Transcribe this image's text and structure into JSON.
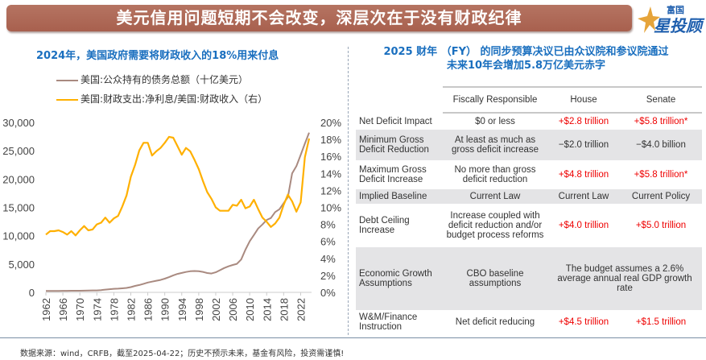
{
  "header": {
    "title": "美元信用问题短期不会改变，深层次在于没有财政纪律",
    "logo_small": "富国",
    "logo_big": "星投顾"
  },
  "left_panel": {
    "title": "2024年，美国政府需要将财政收入的18%用来付息"
  },
  "chart_data": {
    "type": "line",
    "title": "2024年，美国政府需要将财政收入的18%用来付息",
    "x": [
      1962,
      1963,
      1964,
      1965,
      1966,
      1967,
      1968,
      1969,
      1970,
      1971,
      1972,
      1973,
      1974,
      1975,
      1976,
      1977,
      1978,
      1979,
      1980,
      1981,
      1982,
      1983,
      1984,
      1985,
      1986,
      1987,
      1988,
      1989,
      1990,
      1991,
      1992,
      1993,
      1994,
      1995,
      1996,
      1997,
      1998,
      1999,
      2000,
      2001,
      2002,
      2003,
      2004,
      2005,
      2006,
      2007,
      2008,
      2009,
      2010,
      2011,
      2012,
      2013,
      2014,
      2015,
      2016,
      2017,
      2018,
      2019,
      2020,
      2021,
      2022,
      2023,
      2024
    ],
    "x_tick_labels": [
      "1962",
      "1966",
      "1970",
      "1974",
      "1978",
      "1982",
      "1986",
      "1990",
      "1994",
      "1998",
      "2002",
      "2006",
      "2010",
      "2014",
      "2018",
      "2022"
    ],
    "series": [
      {
        "name": "美国:公众持有的债务总额（十亿美元）",
        "axis": "left",
        "color": "#a98a80",
        "values": [
          250,
          255,
          260,
          262,
          265,
          270,
          290,
          280,
          285,
          305,
          320,
          340,
          345,
          395,
          480,
          550,
          620,
          660,
          710,
          785,
          920,
          1140,
          1300,
          1500,
          1740,
          1890,
          2050,
          2190,
          2410,
          2690,
          3000,
          3250,
          3430,
          3600,
          3730,
          3770,
          3720,
          3610,
          3410,
          3320,
          3540,
          3910,
          4300,
          4590,
          4830,
          5040,
          5800,
          7540,
          9020,
          10130,
          11280,
          11980,
          12780,
          13120,
          14170,
          14670,
          15750,
          16800,
          21020,
          22280,
          24250,
          26240,
          28200
        ]
      },
      {
        "name": "美国:财政支出:净利息/美国:财政收入（右）",
        "axis": "right",
        "color": "#ffb000",
        "values": [
          6.8,
          7.2,
          7.2,
          7.3,
          7.1,
          6.8,
          7.2,
          6.7,
          7.3,
          7.8,
          7.3,
          7.4,
          8.0,
          8.2,
          8.8,
          8.2,
          8.7,
          9.0,
          10.1,
          11.4,
          13.6,
          15.0,
          16.7,
          17.6,
          17.6,
          16.1,
          16.6,
          17.0,
          17.6,
          18.3,
          18.2,
          17.2,
          16.2,
          17.0,
          16.6,
          15.6,
          14.5,
          13.1,
          11.8,
          11.0,
          10.0,
          9.6,
          9.6,
          9.6,
          10.3,
          10.2,
          10.9,
          9.9,
          10.1,
          10.9,
          9.8,
          8.8,
          8.3,
          7.7,
          8.1,
          8.8,
          10.3,
          11.5,
          10.7,
          9.5,
          10.6,
          15.9,
          18.1
        ]
      }
    ],
    "y_left": {
      "ticks": [
        "0",
        "5,000",
        "10,000",
        "15,000",
        "20,000",
        "25,000",
        "30,000"
      ],
      "range": [
        0,
        30000
      ]
    },
    "y_right": {
      "ticks": [
        "0%",
        "2%",
        "4%",
        "6%",
        "8%",
        "10%",
        "12%",
        "14%",
        "16%",
        "18%",
        "20%"
      ],
      "range": [
        0,
        20
      ]
    },
    "xlabel": "",
    "ylabel": "",
    "legend_position": "top-left",
    "grid": false
  },
  "right_panel": {
    "title_line1": "2025 财年 （FY） 的同步预算决议已由众议院和参议院通过",
    "title_line2": "未来10年会增加5.8万亿美元赤字",
    "table": {
      "headers": [
        "",
        "Fiscally Responsible",
        "House",
        "Senate"
      ],
      "rows": [
        {
          "label": "Net Deficit Impact",
          "fiscal": "$0 or less",
          "house": "+$2.8 trillion",
          "senate": "+$5.8 trillion*",
          "house_red": true,
          "senate_red": true,
          "shade": false
        },
        {
          "label": "Minimum Gross Deficit Reduction",
          "fiscal": "At least as much as gross deficit increase",
          "house": "−$2.0 trillion",
          "senate": "−$4.0 billion",
          "house_red": false,
          "senate_red": false,
          "shade": true
        },
        {
          "label": "Maximum Gross Deficit Increase",
          "fiscal": "No more than gross deficit reduction",
          "house": "+$4.8 trillion",
          "senate": "+$5.8 trillion*",
          "house_red": true,
          "senate_red": true,
          "shade": false
        },
        {
          "label": "Implied Baseline",
          "fiscal": "Current Law",
          "house": "Current Law",
          "senate": "Current Policy",
          "house_red": false,
          "senate_red": false,
          "shade": true
        },
        {
          "label": "Debt Ceiling Increase",
          "fiscal": "Increase coupled with deficit reduction and/or budget process reforms",
          "house": "+$4.0 trillion",
          "senate": "+$5.0 trillion",
          "house_red": true,
          "senate_red": true,
          "shade": false
        },
        {
          "label": "Economic Growth Assumptions",
          "fiscal": "CBO baseline assumptions",
          "merged": "The budget assumes a 2.6% average annual real GDP growth rate",
          "shade": true
        },
        {
          "label": "W&M/Finance Instruction",
          "fiscal": "Net deficit reducing",
          "house": "+$4.5 trillion",
          "senate": "+$1.5 trillion",
          "house_red": true,
          "senate_red": true,
          "shade": false
        }
      ]
    }
  },
  "footer": {
    "text": "数据来源：wind，CRFB，截至2025-04-22；历史不预示未来，基金有风险，投资需谨慎!"
  },
  "colors": {
    "banner": "#ad6654",
    "title_blue": "#1a6fbf",
    "debt_line": "#a98a80",
    "interest_line": "#ffb000",
    "red_value": "#ee0000",
    "row_shade": "#e4e4e6"
  }
}
